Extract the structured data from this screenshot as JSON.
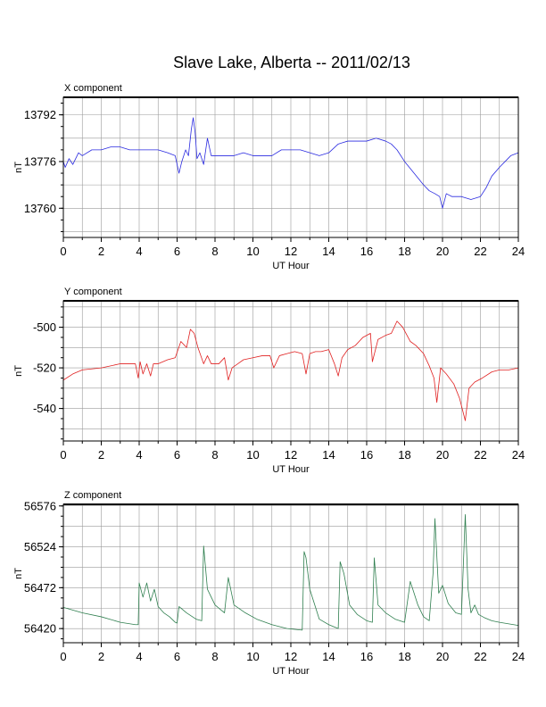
{
  "figure": {
    "title": "Slave Lake, Alberta -- 2011/02/13"
  },
  "chart_data": [
    {
      "type": "line",
      "panel_title": "X component",
      "xlabel": "UT Hour",
      "ylabel": "nT",
      "xlim": [
        0,
        24
      ],
      "ylim": [
        13750,
        13798
      ],
      "xticks": [
        0,
        2,
        4,
        6,
        8,
        10,
        12,
        14,
        16,
        18,
        20,
        22,
        24
      ],
      "xtick_labels": [
        "0",
        "2",
        "4",
        "6",
        "8",
        "10",
        "12",
        "14",
        "16",
        "18",
        "20",
        "22",
        "24"
      ],
      "yticks": [
        13760,
        13776,
        13792
      ],
      "ytick_labels": [
        "13760",
        "13776",
        "13792"
      ],
      "grid": true,
      "color": "#2a2ae0",
      "series": [
        {
          "x": [
            0,
            0.1,
            0.3,
            0.5,
            0.8,
            1,
            1.5,
            2,
            2.5,
            3,
            3.5,
            4,
            4.5,
            5,
            5.5,
            5.9,
            6.0,
            6.1,
            6.25,
            6.45,
            6.6,
            6.75,
            6.85,
            6.95,
            7.05,
            7.2,
            7.4,
            7.6,
            7.8,
            8.2,
            9,
            9.5,
            10,
            11,
            11.5,
            12,
            12.5,
            13,
            13.5,
            14,
            14.5,
            15,
            15.5,
            16,
            16.5,
            17,
            17.3,
            17.6,
            18,
            18.5,
            19,
            19.3,
            19.6,
            19.85,
            20.0,
            20.2,
            20.5,
            21,
            21.5,
            22,
            22.3,
            22.6,
            23,
            23.3,
            23.6,
            24
          ],
          "y": [
            13776,
            13774,
            13777,
            13775,
            13779,
            13778,
            13780,
            13780,
            13781,
            13781,
            13780,
            13780,
            13780,
            13780,
            13779,
            13778,
            13775,
            13772,
            13776,
            13780,
            13778,
            13787,
            13791,
            13786,
            13777,
            13779,
            13775,
            13784,
            13778,
            13778,
            13778,
            13779,
            13778,
            13778,
            13780,
            13780,
            13780,
            13779,
            13778,
            13779,
            13782,
            13783,
            13783,
            13783,
            13784,
            13783,
            13782,
            13780,
            13776,
            13772,
            13768,
            13766,
            13765,
            13764,
            13760,
            13765,
            13764,
            13764,
            13763,
            13764,
            13767,
            13771,
            13774,
            13776,
            13778,
            13779
          ]
        }
      ]
    },
    {
      "type": "line",
      "panel_title": "Y component",
      "xlabel": "UT Hour",
      "ylabel": "nT",
      "xlim": [
        0,
        24
      ],
      "ylim": [
        -556,
        -487
      ],
      "xticks": [
        0,
        2,
        4,
        6,
        8,
        10,
        12,
        14,
        16,
        18,
        20,
        22,
        24
      ],
      "xtick_labels": [
        "0",
        "2",
        "4",
        "6",
        "8",
        "10",
        "12",
        "14",
        "16",
        "18",
        "20",
        "22",
        "24"
      ],
      "yticks": [
        -540,
        -520,
        -500
      ],
      "ytick_labels": [
        "-540",
        "-520",
        "-500"
      ],
      "grid": true,
      "color": "#e02020",
      "series": [
        {
          "x": [
            0,
            0.5,
            1,
            2,
            3,
            3.8,
            3.95,
            4.05,
            4.2,
            4.4,
            4.6,
            4.75,
            5,
            5.5,
            5.9,
            6.2,
            6.5,
            6.7,
            6.9,
            7.1,
            7.4,
            7.6,
            7.8,
            8.2,
            8.5,
            8.7,
            8.9,
            9.2,
            9.5,
            10,
            10.5,
            10.9,
            11.1,
            11.4,
            11.8,
            12.2,
            12.6,
            12.8,
            13,
            13.3,
            13.6,
            14,
            14.3,
            14.5,
            14.7,
            15,
            15.4,
            15.8,
            16.2,
            16.3,
            16.6,
            17,
            17.3,
            17.6,
            17.9,
            18.3,
            18.6,
            19,
            19.3,
            19.55,
            19.7,
            19.9,
            20.2,
            20.6,
            20.9,
            21.2,
            21.4,
            21.7,
            22.1,
            22.6,
            23,
            23.5,
            24
          ],
          "y": [
            -526,
            -523,
            -521,
            -520,
            -518,
            -518,
            -525,
            -517,
            -523,
            -518,
            -524,
            -518,
            -518,
            -516,
            -515,
            -507,
            -510,
            -501,
            -503,
            -510,
            -518,
            -514,
            -518,
            -518,
            -515,
            -526,
            -520,
            -518,
            -516,
            -515,
            -514,
            -514,
            -520,
            -514,
            -513,
            -512,
            -513,
            -523,
            -513,
            -512,
            -512,
            -511,
            -518,
            -524,
            -515,
            -511,
            -509,
            -505,
            -503,
            -517,
            -506,
            -504,
            -503,
            -497,
            -500,
            -507,
            -509,
            -513,
            -519,
            -525,
            -537,
            -520,
            -523,
            -528,
            -535,
            -546,
            -530,
            -527,
            -525,
            -522,
            -521,
            -521,
            -520
          ]
        }
      ]
    },
    {
      "type": "line",
      "panel_title": "Z component",
      "xlabel": "UT Hour",
      "ylabel": "nT",
      "xlim": [
        0,
        24
      ],
      "ylim": [
        56402,
        56578
      ],
      "xticks": [
        0,
        2,
        4,
        6,
        8,
        10,
        12,
        14,
        16,
        18,
        20,
        22,
        24
      ],
      "xtick_labels": [
        "0",
        "2",
        "4",
        "6",
        "8",
        "10",
        "12",
        "14",
        "16",
        "18",
        "20",
        "22",
        "24"
      ],
      "yticks": [
        56420,
        56472,
        56524,
        56576
      ],
      "ytick_labels": [
        "56420",
        "56472",
        "56524",
        "56576"
      ],
      "grid": true,
      "color": "#2f7f4f",
      "series": [
        {
          "x": [
            0,
            1,
            2,
            3,
            3.8,
            3.95,
            4.0,
            4.2,
            4.4,
            4.6,
            4.8,
            5.0,
            5.3,
            5.6,
            5.9,
            6.0,
            6.1,
            6.5,
            7.0,
            7.3,
            7.4,
            7.6,
            8.0,
            8.5,
            8.7,
            9.0,
            9.6,
            10.2,
            11.0,
            11.8,
            12.6,
            12.7,
            12.8,
            13.0,
            13.5,
            14.0,
            14.5,
            14.6,
            14.8,
            15.1,
            15.5,
            16.0,
            16.3,
            16.4,
            16.6,
            17.0,
            17.5,
            18.0,
            18.3,
            18.5,
            18.7,
            19.0,
            19.3,
            19.5,
            19.6,
            19.8,
            20.0,
            20.3,
            20.7,
            21.0,
            21.2,
            21.35,
            21.5,
            21.7,
            21.9,
            22.2,
            22.6,
            23.0,
            23.5,
            24
          ],
          "y": [
            56447,
            56440,
            56435,
            56428,
            56425,
            56425,
            56478,
            56460,
            56478,
            56455,
            56470,
            56448,
            56440,
            56435,
            56428,
            56427,
            56448,
            56440,
            56432,
            56430,
            56525,
            56470,
            56450,
            56440,
            56485,
            56450,
            56440,
            56432,
            56425,
            56420,
            56418,
            56518,
            56510,
            56470,
            56432,
            56425,
            56420,
            56505,
            56490,
            56450,
            56438,
            56430,
            56428,
            56510,
            56450,
            56440,
            56432,
            56428,
            56480,
            56465,
            56450,
            56435,
            56430,
            56490,
            56560,
            56465,
            56475,
            56452,
            56440,
            56438,
            56565,
            56470,
            56440,
            56450,
            56438,
            56434,
            56430,
            56428,
            56426,
            56424
          ]
        }
      ]
    }
  ]
}
